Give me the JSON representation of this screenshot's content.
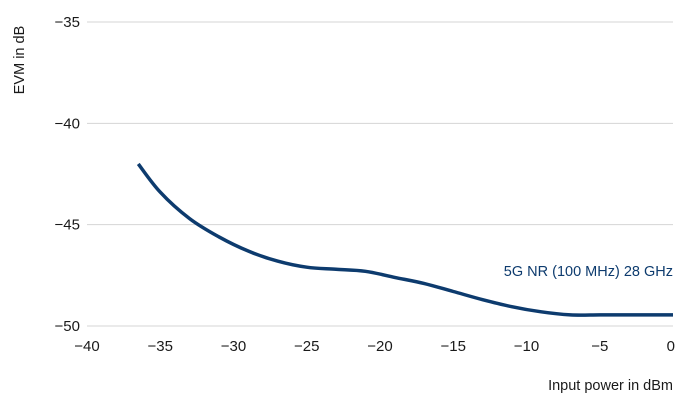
{
  "chart_data": {
    "type": "line",
    "title": "",
    "xlabel": "Input power in dBm",
    "ylabel": "EVM in dB",
    "xlim": [
      -40,
      0
    ],
    "ylim": [
      -50,
      -35
    ],
    "x_ticks": [
      -40,
      -35,
      -30,
      -25,
      -20,
      -15,
      -10,
      -5,
      0
    ],
    "y_ticks": [
      -35,
      -40,
      -45,
      -50
    ],
    "grid": "horizontal",
    "legend": "none",
    "series": [
      {
        "name": "5G NR (100 MHz) 28 GHz",
        "color": "#0d3b6e",
        "x": [
          -36.5,
          -35,
          -33,
          -31,
          -29,
          -27,
          -25,
          -23,
          -21,
          -19,
          -17,
          -15,
          -13,
          -11,
          -9,
          -7,
          -5,
          -3,
          -1,
          0
        ],
        "y": [
          -42.0,
          -43.4,
          -44.7,
          -45.6,
          -46.3,
          -46.8,
          -47.1,
          -47.2,
          -47.3,
          -47.6,
          -47.9,
          -48.3,
          -48.7,
          -49.05,
          -49.3,
          -49.45,
          -49.45,
          -49.45,
          -49.45,
          -49.45
        ]
      }
    ]
  }
}
